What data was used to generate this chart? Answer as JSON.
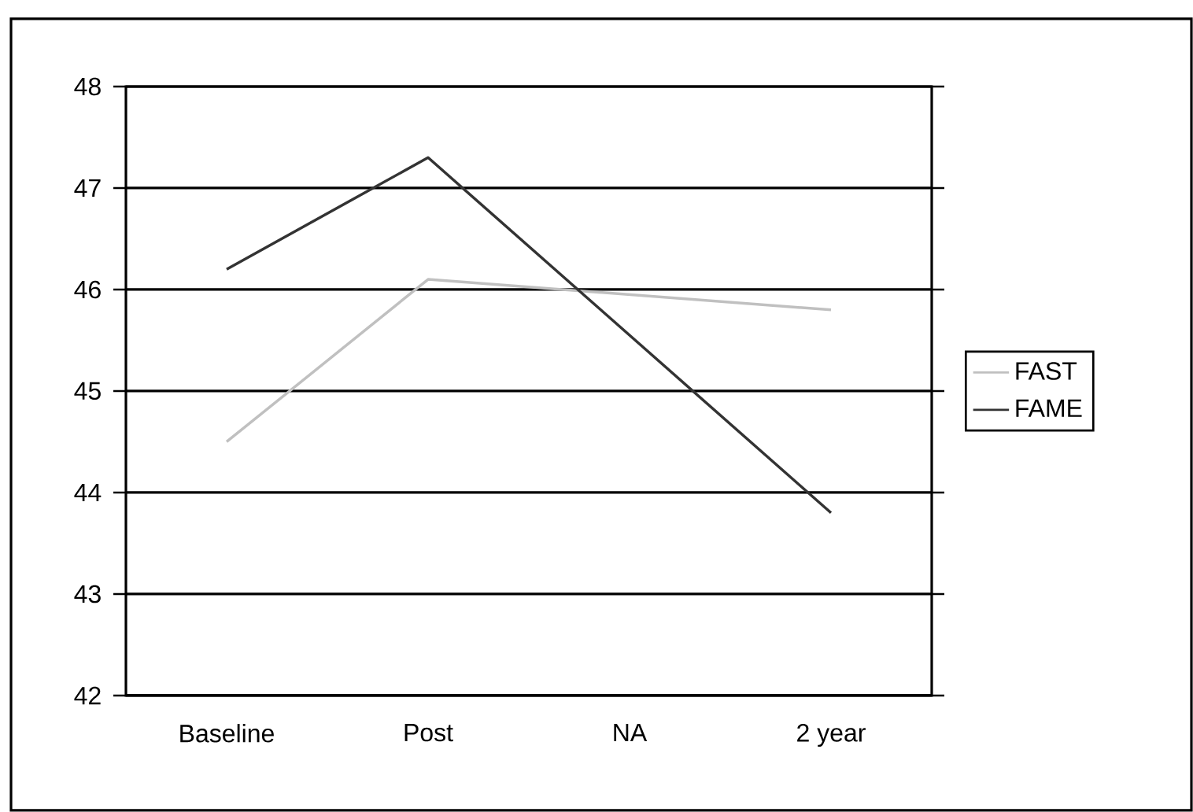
{
  "chart_data": {
    "type": "line",
    "categories": [
      "Baseline",
      "Post",
      "NA",
      "2 year"
    ],
    "series": [
      {
        "name": "FAST",
        "color": "#c0c0c0",
        "values": [
          44.5,
          46.1,
          null,
          45.8
        ]
      },
      {
        "name": "FAME",
        "color": "#333333",
        "values": [
          46.2,
          47.3,
          null,
          43.8
        ]
      }
    ],
    "ylim": [
      42,
      48
    ],
    "yticks": [
      42,
      43,
      44,
      45,
      46,
      47,
      48
    ],
    "grid": "y",
    "legend": "right"
  }
}
